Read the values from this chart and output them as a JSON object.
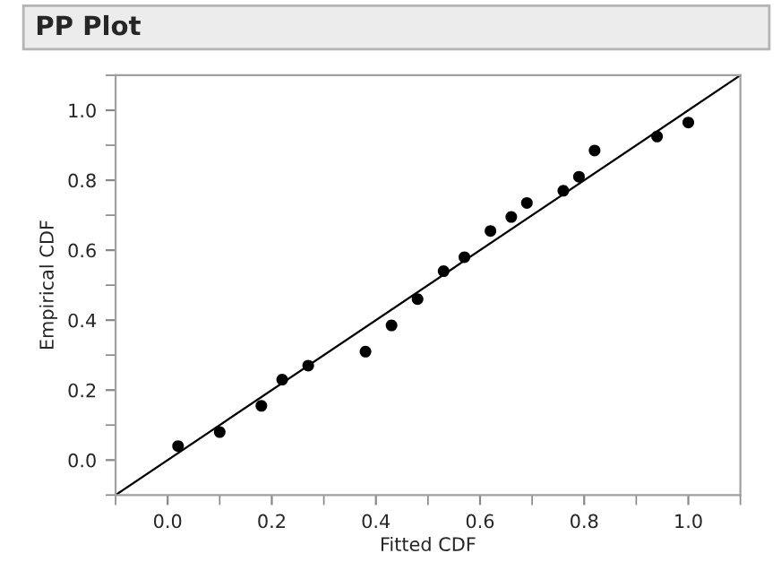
{
  "chart_data": {
    "type": "scatter",
    "title": "PP Plot",
    "xlabel": "Fitted CDF",
    "ylabel": "Empirical CDF",
    "xlim": [
      -0.1,
      1.1
    ],
    "ylim": [
      -0.1,
      1.1
    ],
    "xticks": [
      {
        "value": 0,
        "label": "0.0"
      },
      {
        "value": 0.2,
        "label": "0.2"
      },
      {
        "value": 0.4,
        "label": "0.4"
      },
      {
        "value": 0.6,
        "label": "0.6"
      },
      {
        "value": 0.8,
        "label": "0.8"
      },
      {
        "value": 1,
        "label": "1.0"
      }
    ],
    "yticks": [
      {
        "value": 0,
        "label": "0.0"
      },
      {
        "value": 0.2,
        "label": "0.2"
      },
      {
        "value": 0.4,
        "label": "0.4"
      },
      {
        "value": 0.6,
        "label": "0.6"
      },
      {
        "value": 0.8,
        "label": "0.8"
      },
      {
        "value": 1,
        "label": "1.0"
      }
    ],
    "grid": false,
    "legend": false,
    "series": [
      {
        "marker": "circle",
        "color": "#000000",
        "x": [
          0.02,
          0.1,
          0.18,
          0.22,
          0.27,
          0.38,
          0.43,
          0.48,
          0.53,
          0.57,
          0.62,
          0.66,
          0.69,
          0.76,
          0.79,
          0.82,
          0.94,
          1.0
        ],
        "values": [
          0.04,
          0.08,
          0.155,
          0.23,
          0.27,
          0.31,
          0.385,
          0.46,
          0.54,
          0.58,
          0.655,
          0.695,
          0.735,
          0.77,
          0.81,
          0.885,
          0.925,
          0.965
        ]
      },
      {
        "type": "line",
        "marker": "none",
        "color": "#000000",
        "x": [
          -0.1,
          1.1
        ],
        "values": [
          -0.1,
          1.1
        ]
      }
    ]
  }
}
